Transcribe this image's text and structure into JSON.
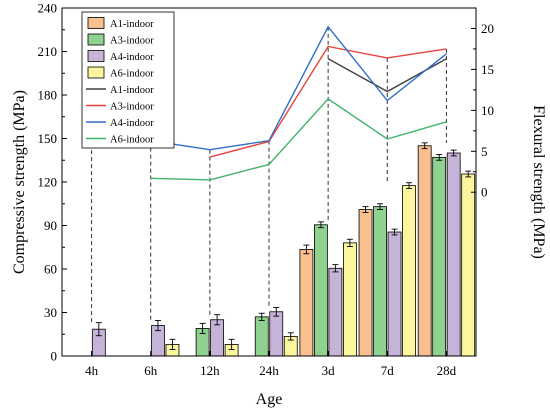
{
  "chart_data": {
    "type": "bar",
    "categories": [
      "4h",
      "6h",
      "12h",
      "24h",
      "3d",
      "7d",
      "28d"
    ],
    "xlabel": "Age",
    "ylabel": "Compressive strength (MPa)",
    "y2label": "Flexural strength (MPa)",
    "ylim": [
      0,
      240
    ],
    "yticks": [
      0,
      30,
      60,
      90,
      120,
      150,
      180,
      210,
      240
    ],
    "y2lim": [
      -20,
      22.5
    ],
    "y2ticks": [
      0,
      5,
      10,
      15,
      20
    ],
    "grid": false,
    "legend_position": "top-left",
    "bar_series": [
      {
        "name": "A1-indoor",
        "color": "#f9c08f",
        "values": [
          null,
          null,
          null,
          null,
          73.5,
          101,
          145
        ],
        "errors": [
          0,
          0,
          0,
          0,
          3,
          2,
          2
        ]
      },
      {
        "name": "A3-indoor",
        "color": "#8fd18f",
        "values": [
          null,
          null,
          19,
          27,
          90.5,
          103,
          137
        ],
        "errors": [
          0,
          0,
          3.5,
          2.5,
          2,
          2,
          2
        ]
      },
      {
        "name": "A4-indoor",
        "color": "#c6b4d8",
        "values": [
          18.5,
          21,
          25,
          30.5,
          60.5,
          85.5,
          140
        ],
        "errors": [
          4.5,
          3.5,
          3.5,
          3,
          2.5,
          2,
          2
        ]
      },
      {
        "name": "A6-indoor",
        "color": "#fbf59c",
        "values": [
          null,
          8,
          8,
          13.5,
          78,
          117.5,
          125.5
        ],
        "errors": [
          0,
          3.5,
          3.5,
          2.5,
          2.5,
          2,
          2
        ]
      }
    ],
    "line_series": [
      {
        "name": "A1-indoor",
        "color": "#404040",
        "axis": "y2",
        "values": [
          null,
          null,
          null,
          null,
          16.3,
          12.3,
          16.3
        ]
      },
      {
        "name": "A3-indoor",
        "color": "#e8423c",
        "axis": "y2",
        "values": [
          null,
          null,
          4.3,
          6.2,
          17.8,
          16.4,
          17.5
        ]
      },
      {
        "name": "A4-indoor",
        "color": "#2f6ec8",
        "axis": "y2",
        "values": [
          6.0,
          6.3,
          5.2,
          6.3,
          20.2,
          11.2,
          16.9
        ]
      },
      {
        "name": "A6-indoor",
        "color": "#3fb36a",
        "axis": "y2",
        "values": [
          null,
          1.7,
          1.5,
          3.4,
          11.4,
          6.5,
          8.6
        ]
      }
    ]
  }
}
